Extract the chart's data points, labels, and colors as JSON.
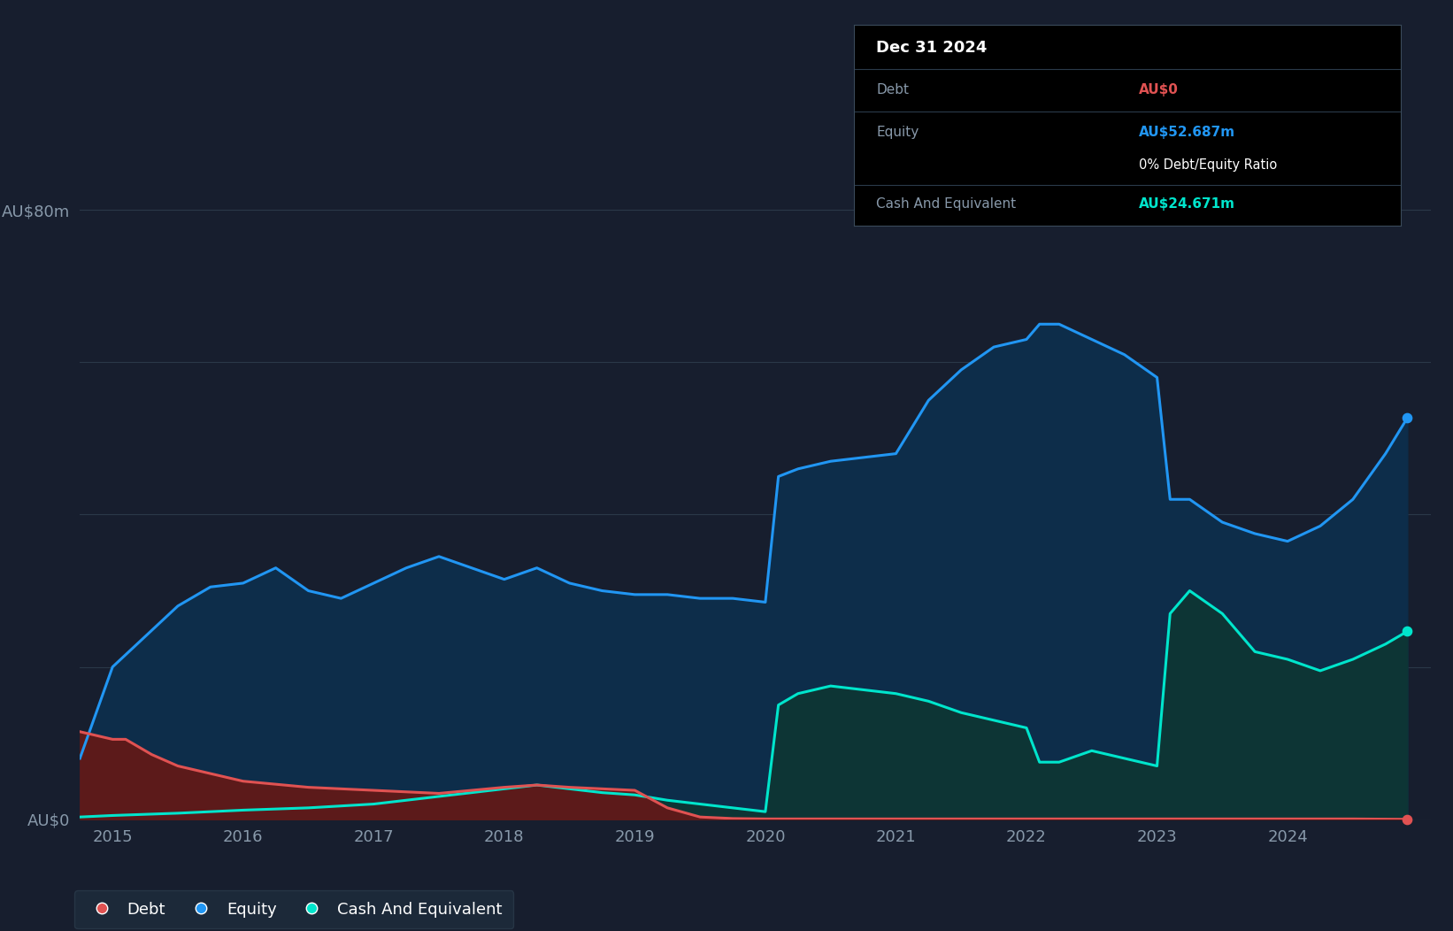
{
  "background_color": "#171e2e",
  "plot_bg_color": "#171e2e",
  "grid_color": "#2a3848",
  "line_color_debt": "#e05252",
  "line_color_equity": "#2196f3",
  "line_color_cash": "#00e5cc",
  "fill_color_debt": "#5c1a1a",
  "fill_color_equity": "#0d2d4a",
  "fill_color_cash": "#0d3535",
  "debt_x": [
    2014.75,
    2015.0,
    2015.1,
    2015.3,
    2015.5,
    2015.75,
    2016.0,
    2016.5,
    2017.0,
    2017.5,
    2018.0,
    2018.25,
    2018.5,
    2018.75,
    2019.0,
    2019.25,
    2019.5,
    2019.75,
    2020.0,
    2020.5,
    2021.0,
    2021.5,
    2022.0,
    2022.5,
    2023.0,
    2023.5,
    2024.0,
    2024.5,
    2024.917
  ],
  "debt_y": [
    11.5,
    10.5,
    10.5,
    8.5,
    7.0,
    6.0,
    5.0,
    4.2,
    3.8,
    3.4,
    4.2,
    4.5,
    4.2,
    4.0,
    3.8,
    1.5,
    0.3,
    0.1,
    0.05,
    0.05,
    0.05,
    0.05,
    0.05,
    0.05,
    0.05,
    0.05,
    0.05,
    0.05,
    0.0
  ],
  "equity_x": [
    2014.75,
    2015.0,
    2015.5,
    2015.75,
    2016.0,
    2016.25,
    2016.5,
    2016.75,
    2017.0,
    2017.25,
    2017.5,
    2017.75,
    2018.0,
    2018.25,
    2018.5,
    2018.75,
    2019.0,
    2019.25,
    2019.5,
    2019.75,
    2020.0,
    2020.1,
    2020.25,
    2020.5,
    2020.75,
    2021.0,
    2021.25,
    2021.5,
    2021.75,
    2022.0,
    2022.1,
    2022.25,
    2022.5,
    2022.75,
    2023.0,
    2023.1,
    2023.25,
    2023.5,
    2023.75,
    2024.0,
    2024.25,
    2024.5,
    2024.75,
    2024.917
  ],
  "equity_y": [
    8.0,
    20.0,
    28.0,
    30.5,
    31.0,
    33.0,
    30.0,
    29.0,
    31.0,
    33.0,
    34.5,
    33.0,
    31.5,
    33.0,
    31.0,
    30.0,
    29.5,
    29.5,
    29.0,
    29.0,
    28.5,
    45.0,
    46.0,
    47.0,
    47.5,
    48.0,
    55.0,
    59.0,
    62.0,
    63.0,
    65.0,
    65.0,
    63.0,
    61.0,
    58.0,
    42.0,
    42.0,
    39.0,
    37.5,
    36.5,
    38.5,
    42.0,
    48.0,
    52.687
  ],
  "cash_x": [
    2014.75,
    2015.0,
    2015.5,
    2016.0,
    2016.5,
    2017.0,
    2017.5,
    2017.75,
    2018.0,
    2018.25,
    2018.5,
    2018.75,
    2019.0,
    2019.25,
    2019.5,
    2019.75,
    2020.0,
    2020.1,
    2020.25,
    2020.5,
    2020.75,
    2021.0,
    2021.25,
    2021.5,
    2021.75,
    2022.0,
    2022.1,
    2022.25,
    2022.5,
    2022.75,
    2023.0,
    2023.1,
    2023.25,
    2023.5,
    2023.75,
    2024.0,
    2024.25,
    2024.5,
    2024.75,
    2024.917
  ],
  "cash_y": [
    0.3,
    0.5,
    0.8,
    1.2,
    1.5,
    2.0,
    3.0,
    3.5,
    4.0,
    4.5,
    4.0,
    3.5,
    3.2,
    2.5,
    2.0,
    1.5,
    1.0,
    15.0,
    16.5,
    17.5,
    17.0,
    16.5,
    15.5,
    14.0,
    13.0,
    12.0,
    7.5,
    7.5,
    9.0,
    8.0,
    7.0,
    27.0,
    30.0,
    27.0,
    22.0,
    21.0,
    19.5,
    21.0,
    23.0,
    24.671
  ],
  "xmin": 2014.75,
  "xmax": 2025.1,
  "ymin": 0,
  "ymax": 88,
  "ytick_positions": [
    0,
    20,
    40,
    60,
    80
  ],
  "ytick_labels": [
    "AU$0",
    "",
    "",
    "",
    "AU$80m"
  ],
  "xticks": [
    2015,
    2016,
    2017,
    2018,
    2019,
    2020,
    2021,
    2022,
    2023,
    2024
  ],
  "legend_labels": [
    "Debt",
    "Equity",
    "Cash And Equivalent"
  ],
  "tooltip_date": "Dec 31 2024",
  "tooltip_debt_label": "Debt",
  "tooltip_debt_value": "AU$0",
  "tooltip_equity_label": "Equity",
  "tooltip_equity_value": "AU$52.687m",
  "tooltip_ratio": "0%",
  "tooltip_ratio_suffix": " Debt/Equity Ratio",
  "tooltip_cash_label": "Cash And Equivalent",
  "tooltip_cash_value": "AU$24.671m"
}
